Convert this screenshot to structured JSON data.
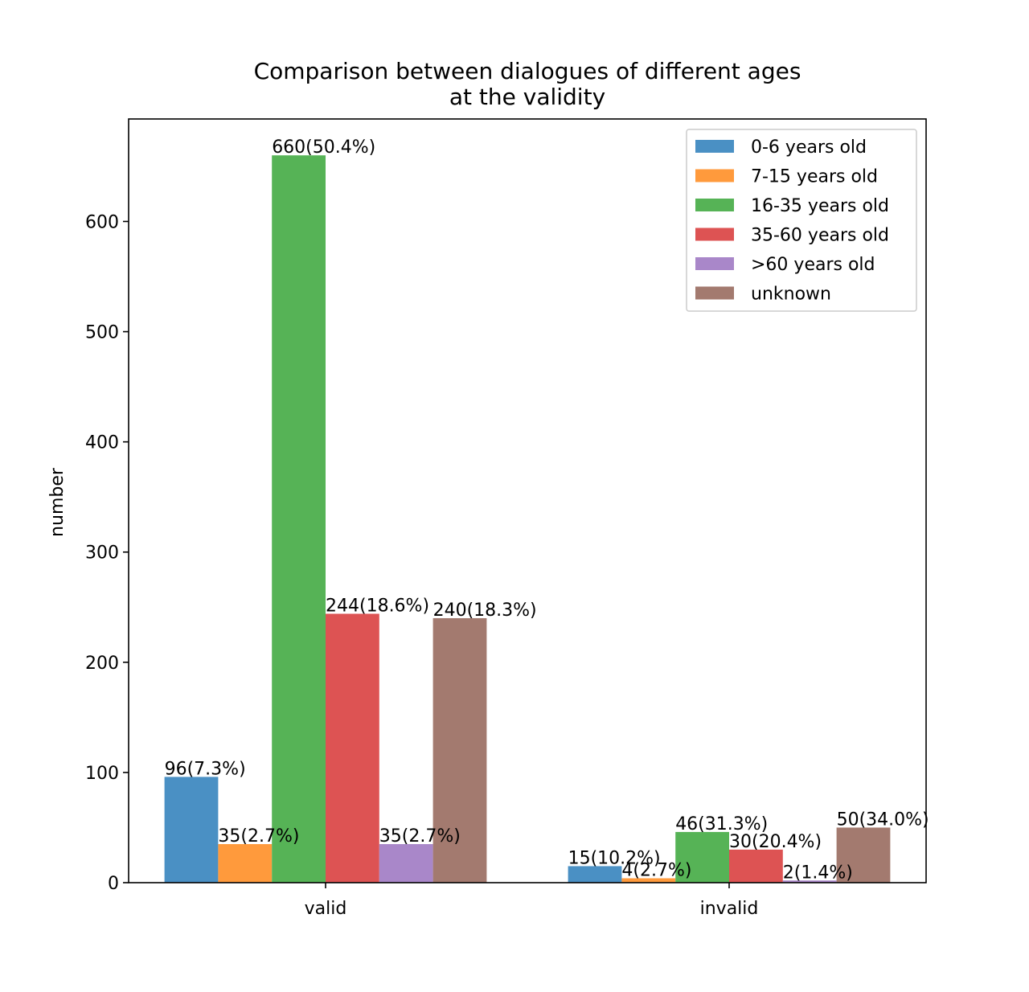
{
  "chart_data": {
    "type": "bar",
    "title": "Comparison between dialogues of different ages\nat the validity",
    "xlabel": "",
    "ylabel": "number",
    "categories": [
      "valid",
      "invalid"
    ],
    "ylim": [
      0,
      693
    ],
    "yticks": [
      0,
      100,
      200,
      300,
      400,
      500,
      600
    ],
    "grid": false,
    "legend_position": "top-right",
    "series": [
      {
        "name": "0-6 years old",
        "color": "#4a90c4",
        "values": [
          96,
          15
        ],
        "labels": [
          "96(7.3%)",
          "15(10.2%)"
        ]
      },
      {
        "name": "7-15 years old",
        "color": "#ff9a3c",
        "values": [
          35,
          4
        ],
        "labels": [
          "35(2.7%)",
          "4(2.7%)"
        ]
      },
      {
        "name": "16-35 years old",
        "color": "#56b356",
        "values": [
          660,
          46
        ],
        "labels": [
          "660(50.4%)",
          "46(31.3%)"
        ]
      },
      {
        "name": "35-60 years old",
        "color": "#dd5353",
        "values": [
          244,
          30
        ],
        "labels": [
          "244(18.6%)",
          "30(20.4%)"
        ]
      },
      {
        "name": ">60 years old",
        "color": "#a987c9",
        "values": [
          35,
          2
        ],
        "labels": [
          "35(2.7%)",
          "2(1.4%)"
        ]
      },
      {
        "name": "unknown",
        "color": "#a37a6f",
        "values": [
          240,
          50
        ],
        "labels": [
          "240(18.3%)",
          "50(34.0%)"
        ]
      }
    ]
  }
}
